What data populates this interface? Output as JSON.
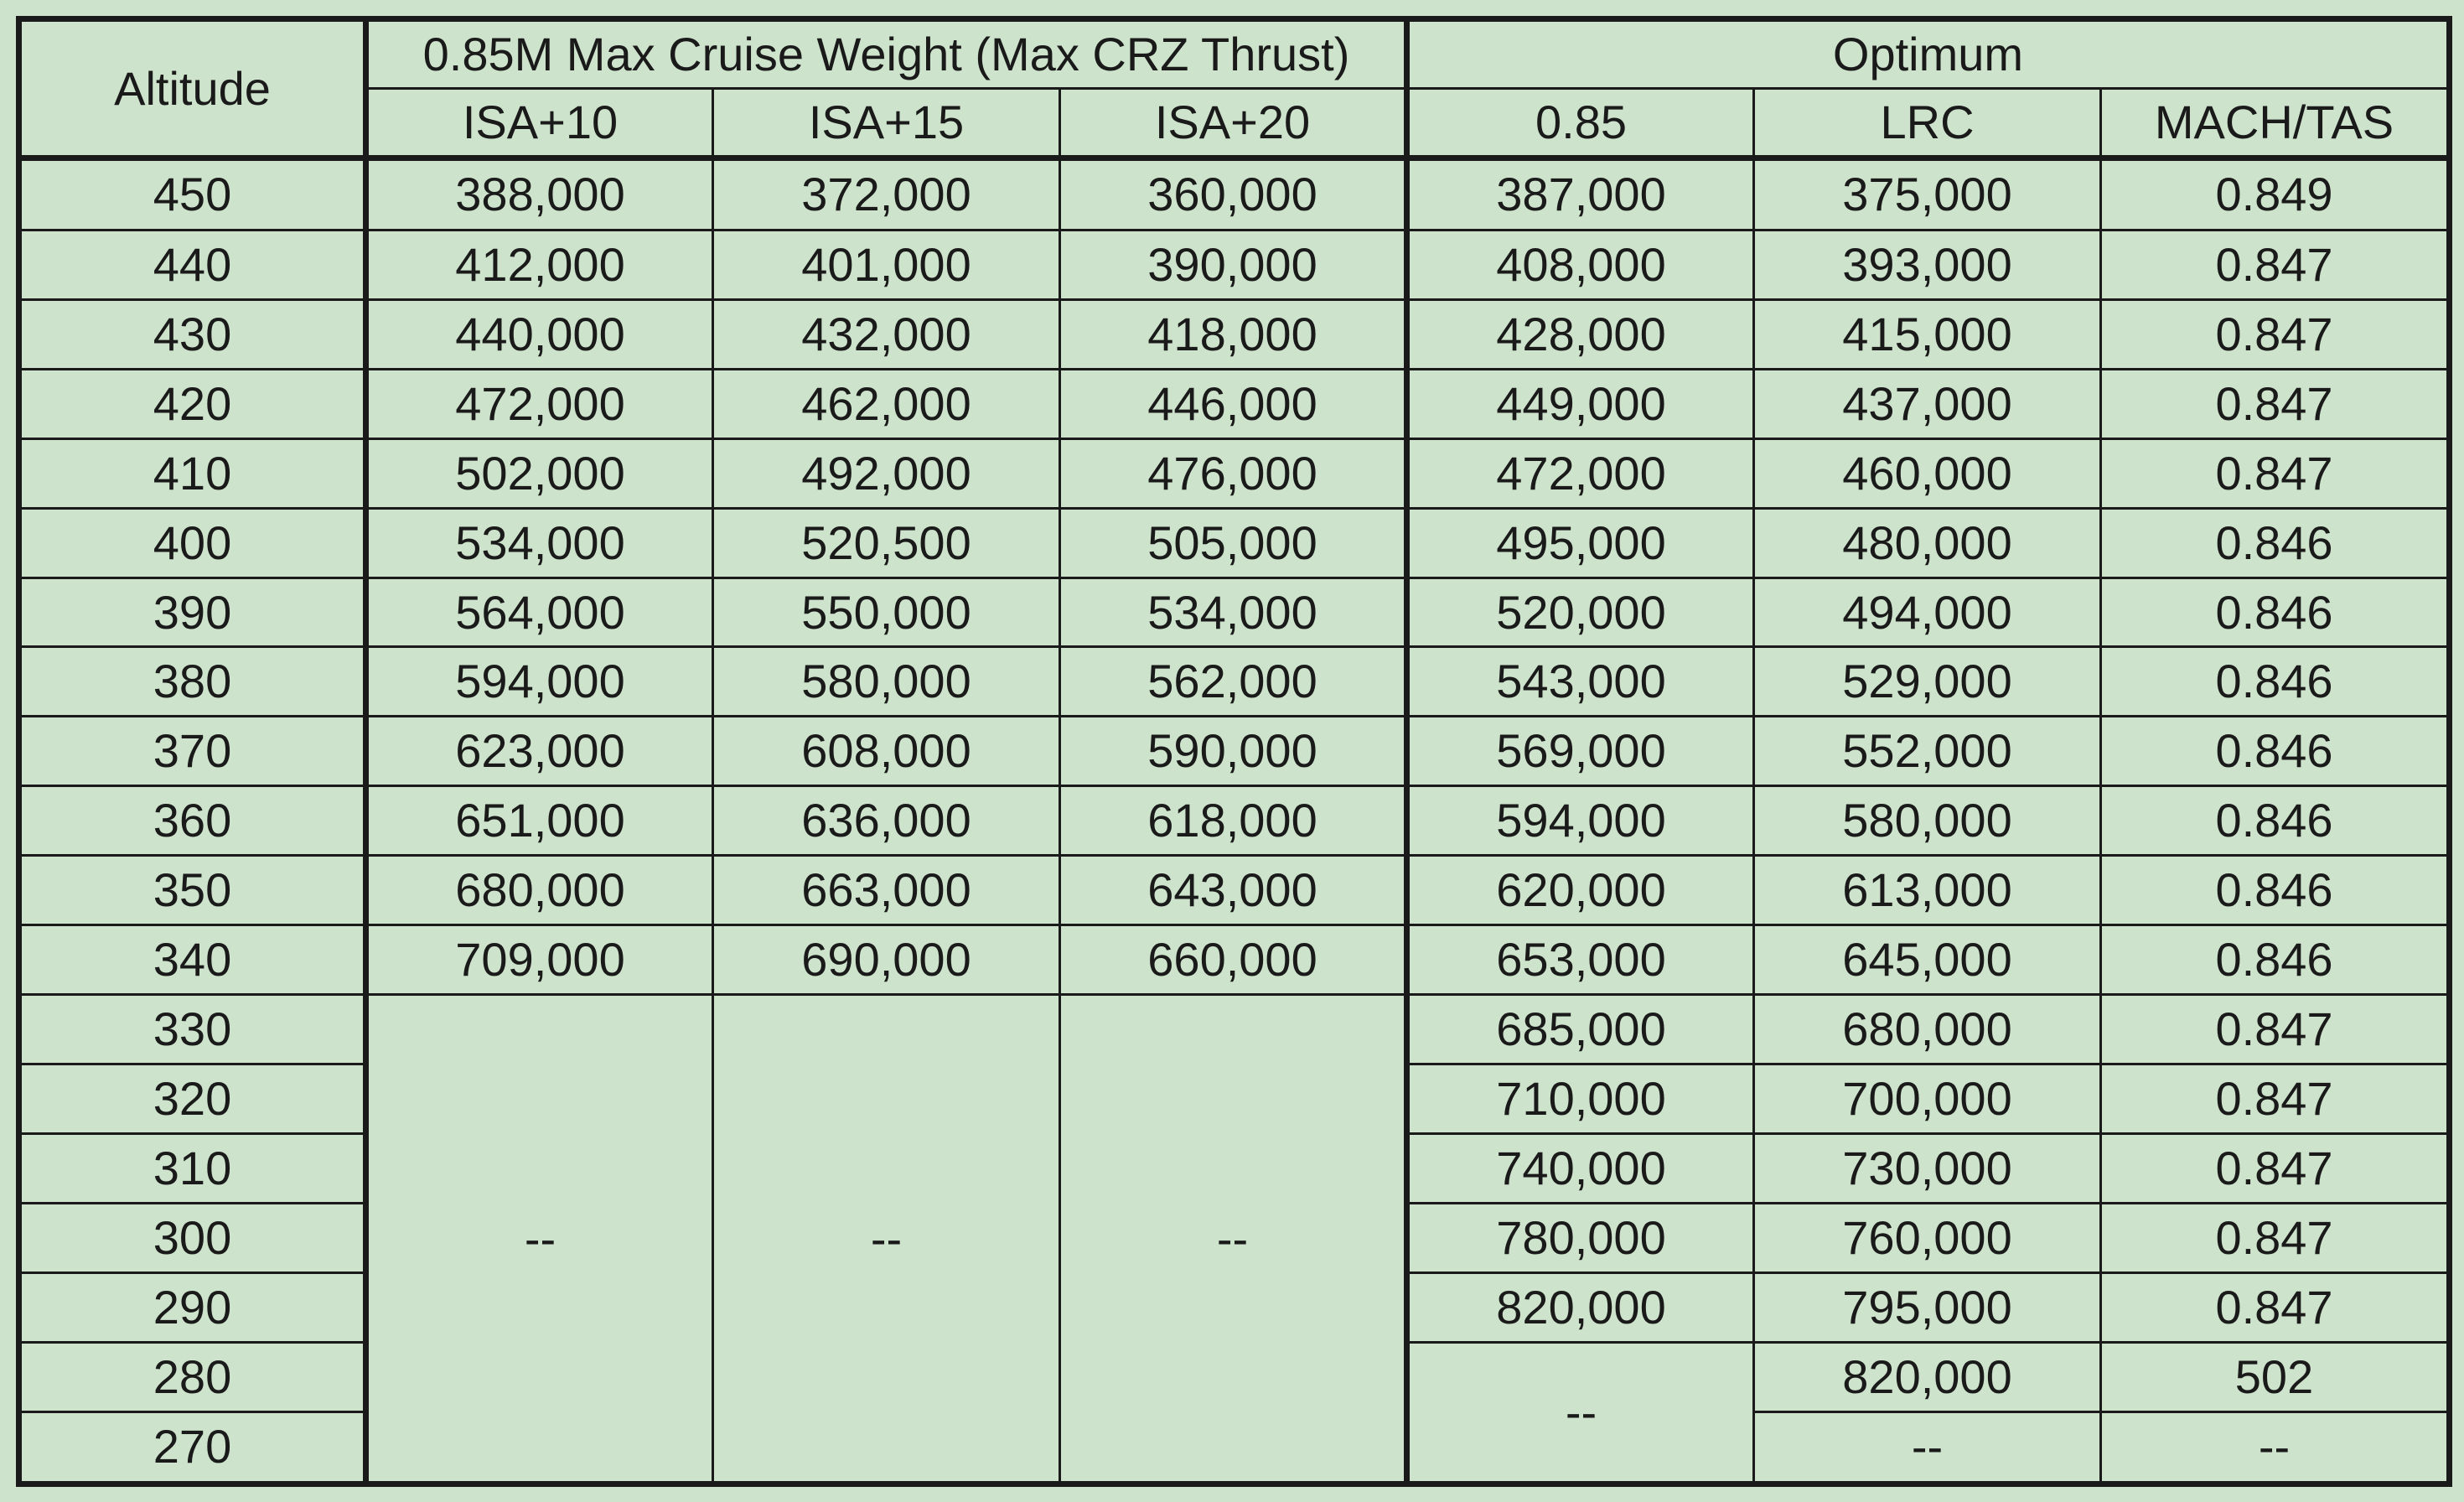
{
  "table": {
    "altitude_header": "Altitude",
    "group1_header": "0.85M Max Cruise Weight (Max CRZ Thrust)",
    "group2_header": "Optimum",
    "sub_headers": [
      "ISA+10",
      "ISA+15",
      "ISA+20",
      "0.85",
      "LRC",
      "MACH/TAS"
    ],
    "rows": [
      [
        "450",
        "388,000",
        "372,000",
        "360,000",
        "387,000",
        "375,000",
        "0.849"
      ],
      [
        "440",
        "412,000",
        "401,000",
        "390,000",
        "408,000",
        "393,000",
        "0.847"
      ],
      [
        "430",
        "440,000",
        "432,000",
        "418,000",
        "428,000",
        "415,000",
        "0.847"
      ],
      [
        "420",
        "472,000",
        "462,000",
        "446,000",
        "449,000",
        "437,000",
        "0.847"
      ],
      [
        "410",
        "502,000",
        "492,000",
        "476,000",
        "472,000",
        "460,000",
        "0.847"
      ],
      [
        "400",
        "534,000",
        "520,500",
        "505,000",
        "495,000",
        "480,000",
        "0.846"
      ],
      [
        "390",
        "564,000",
        "550,000",
        "534,000",
        "520,000",
        "494,000",
        "0.846"
      ],
      [
        "380",
        "594,000",
        "580,000",
        "562,000",
        "543,000",
        "529,000",
        "0.846"
      ],
      [
        "370",
        "623,000",
        "608,000",
        "590,000",
        "569,000",
        "552,000",
        "0.846"
      ],
      [
        "360",
        "651,000",
        "636,000",
        "618,000",
        "594,000",
        "580,000",
        "0.846"
      ],
      [
        "350",
        "680,000",
        "663,000",
        "643,000",
        "620,000",
        "613,000",
        "0.846"
      ],
      [
        "340",
        "709,000",
        "690,000",
        "660,000",
        "653,000",
        "645,000",
        "0.846"
      ]
    ],
    "lower_rows": [
      [
        "330",
        "685,000",
        "680,000",
        "0.847"
      ],
      [
        "320",
        "710,000",
        "700,000",
        "0.847"
      ],
      [
        "310",
        "740,000",
        "730,000",
        "0.847"
      ],
      [
        "300",
        "780,000",
        "760,000",
        "0.847"
      ],
      [
        "290",
        "820,000",
        "795,000",
        "0.847"
      ]
    ],
    "merged_dash": "--",
    "row_280": {
      "altitude": "280",
      "lrc": "820,000",
      "mach_tas": "502"
    },
    "row_270": {
      "altitude": "270",
      "lrc": "--",
      "mach_tas": "--"
    },
    "opt085_dash": "--"
  }
}
